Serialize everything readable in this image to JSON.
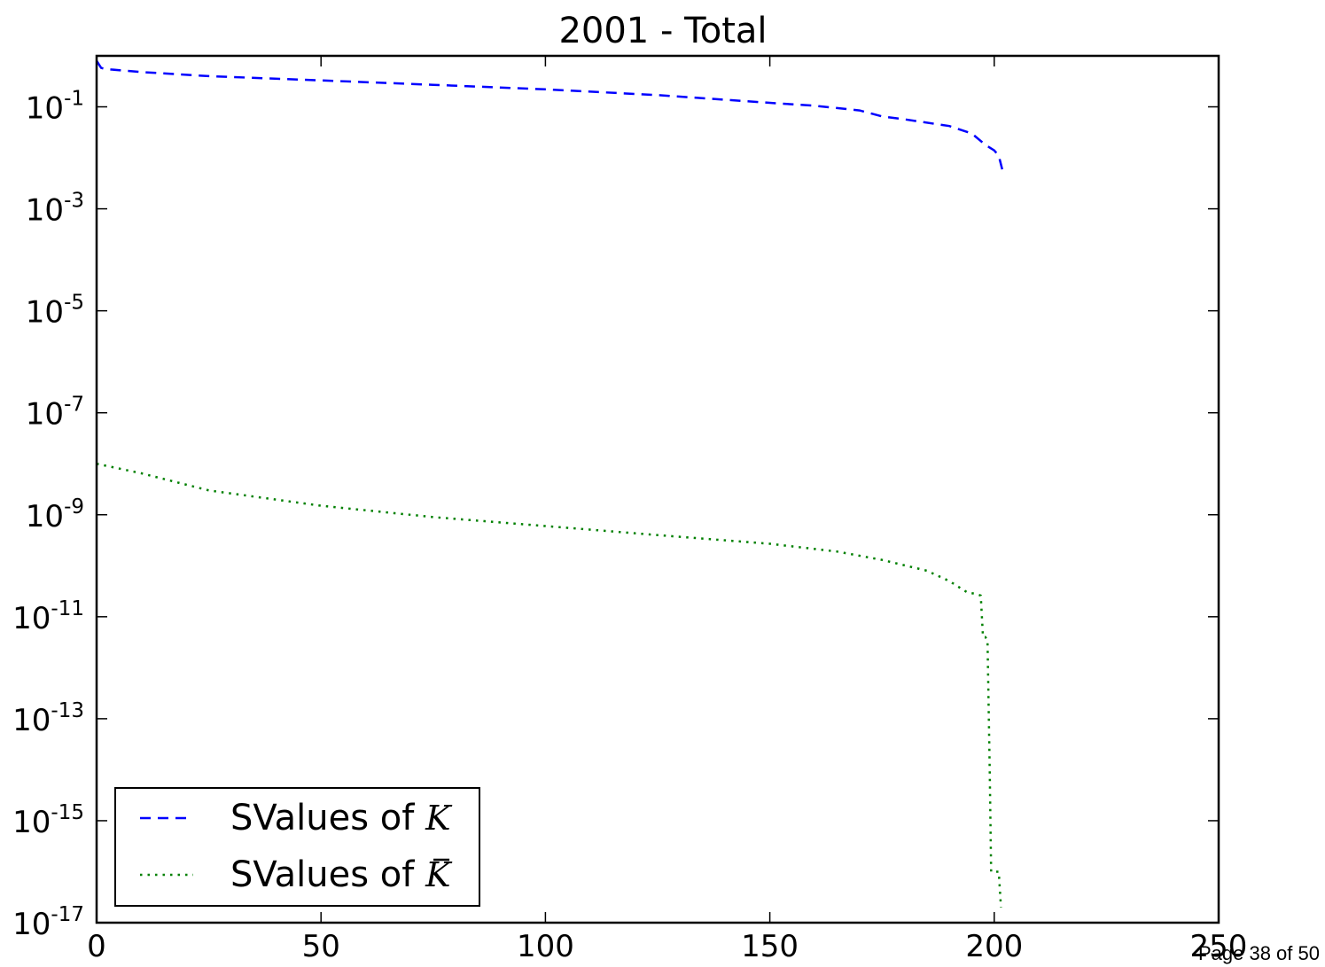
{
  "footer": {
    "page_label": "Page 38 of 50"
  },
  "chart_data": {
    "type": "line",
    "title": "2001 - Total",
    "xlabel": "",
    "ylabel": "",
    "y_scale": "log",
    "xlim": [
      0,
      250
    ],
    "ylim_exponent": [
      -17,
      0
    ],
    "x_ticks": [
      {
        "value": 0,
        "label": "0"
      },
      {
        "value": 50,
        "label": "50"
      },
      {
        "value": 100,
        "label": "100"
      },
      {
        "value": 150,
        "label": "150"
      },
      {
        "value": 200,
        "label": "200"
      },
      {
        "value": 250,
        "label": "250"
      }
    ],
    "y_ticks": [
      {
        "exp": -1,
        "base": "10",
        "sup": "-1"
      },
      {
        "exp": -3,
        "base": "10",
        "sup": "-3"
      },
      {
        "exp": -5,
        "base": "10",
        "sup": "-5"
      },
      {
        "exp": -7,
        "base": "10",
        "sup": "-7"
      },
      {
        "exp": -9,
        "base": "10",
        "sup": "-9"
      },
      {
        "exp": -11,
        "base": "10",
        "sup": "-11"
      },
      {
        "exp": -13,
        "base": "10",
        "sup": "-13"
      },
      {
        "exp": -15,
        "base": "10",
        "sup": "-15"
      },
      {
        "exp": -17,
        "base": "10",
        "sup": "-17"
      }
    ],
    "grid": false,
    "legend_position": "lower-left",
    "series": [
      {
        "name": "SValues of K",
        "legend_prefix": "SValues of ",
        "legend_symbol": "K",
        "legend_bar": false,
        "color": "#0000ff",
        "style": "dashed",
        "x": [
          0,
          1,
          2,
          10,
          25,
          50,
          75,
          100,
          125,
          150,
          160,
          170,
          175,
          180,
          190,
          195,
          198,
          200,
          201,
          202
        ],
        "y": [
          0.8,
          0.58,
          0.55,
          0.48,
          0.4,
          0.33,
          0.27,
          0.22,
          0.17,
          0.12,
          0.105,
          0.085,
          0.065,
          0.057,
          0.042,
          0.03,
          0.018,
          0.014,
          0.011,
          0.005
        ]
      },
      {
        "name": "SValues of K̄",
        "legend_prefix": "SValues of ",
        "legend_symbol": "K",
        "legend_bar": true,
        "color": "#008000",
        "style": "dotted",
        "x": [
          0,
          10,
          25,
          50,
          75,
          100,
          125,
          150,
          165,
          175,
          185,
          190,
          194,
          196,
          197,
          197.5,
          198,
          198.5,
          199,
          199.3,
          200,
          201,
          201.5
        ],
        "y": [
          1e-08,
          6.5e-09,
          3e-09,
          1.5e-09,
          9e-10,
          6e-10,
          4e-10,
          2.7e-10,
          1.9e-10,
          1.3e-10,
          8e-11,
          5e-11,
          3e-11,
          2.8e-11,
          2.6e-11,
          4e-12,
          4e-12,
          3.5e-12,
          1e-14,
          1e-16,
          1e-16,
          1e-16,
          2e-17
        ]
      }
    ]
  }
}
